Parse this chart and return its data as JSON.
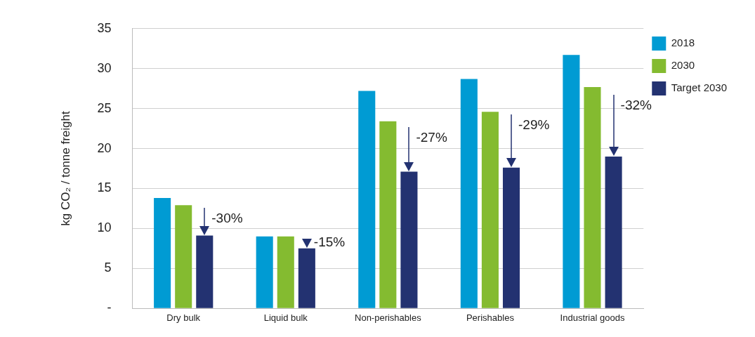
{
  "chart_data": {
    "type": "bar",
    "ylabel": "kg CO₂ / tonne freight",
    "categories": [
      "Dry bulk",
      "Liquid bulk",
      "Non-perishables",
      "Perishables",
      "Industrial goods"
    ],
    "series": [
      {
        "name": "2018",
        "color": "#009bd3",
        "values": [
          13.8,
          9.0,
          27.2,
          28.7,
          31.7
        ]
      },
      {
        "name": "2030",
        "color": "#84bb30",
        "values": [
          12.9,
          9.0,
          23.4,
          24.6,
          27.7
        ]
      },
      {
        "name": "Target 2030",
        "color": "#233271",
        "values": [
          9.1,
          7.5,
          17.1,
          17.6,
          19.0
        ]
      }
    ],
    "ylim": [
      0,
      35
    ],
    "yticks": [
      {
        "value": 0,
        "label": "-"
      },
      5,
      10,
      15,
      20,
      25,
      30,
      35
    ],
    "grid": "y",
    "legend": "top right",
    "annotations": [
      "-30%",
      "-15%",
      "-27%",
      "-29%",
      "-32%"
    ]
  }
}
